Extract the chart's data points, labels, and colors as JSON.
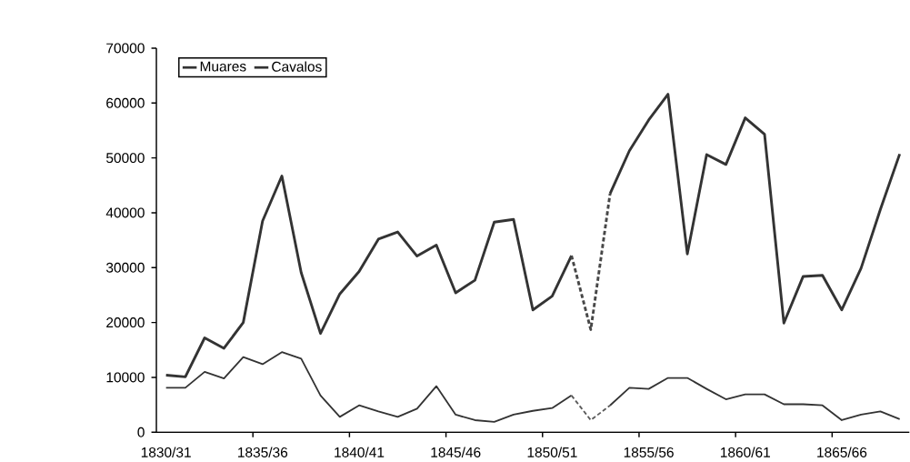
{
  "chart_data": {
    "type": "line",
    "categories": [
      "1830/31",
      null,
      null,
      null,
      null,
      "1835/36",
      null,
      null,
      null,
      null,
      "1840/41",
      null,
      null,
      null,
      null,
      "1845/46",
      null,
      null,
      null,
      null,
      "1850/51",
      null,
      null,
      null,
      null,
      "1855/56",
      null,
      null,
      null,
      null,
      "1860/61",
      null,
      null,
      null,
      null,
      "1865/66",
      null,
      null,
      null
    ],
    "series": [
      {
        "name": "Muares",
        "color": "#333333",
        "line_style": "solid",
        "values": [
          10400,
          10100,
          17200,
          15300,
          20000,
          38500,
          46700,
          29100,
          18000,
          25200,
          29300,
          35200,
          36500,
          32100,
          34100,
          25400,
          27700,
          38300,
          38800,
          22300,
          24800,
          32200,
          null,
          43500,
          51300,
          56900,
          61600,
          32500,
          50600,
          48800,
          57300,
          54300,
          19900,
          28400,
          28600,
          22300,
          29900,
          40600,
          50700
        ]
      },
      {
        "name": "Cavalos",
        "color": "#333333",
        "line_style": "solid",
        "values": [
          8100,
          8100,
          11000,
          9800,
          13700,
          12400,
          14600,
          13400,
          6700,
          2800,
          4900,
          3800,
          2800,
          4300,
          8400,
          3200,
          2200,
          1900,
          3200,
          3900,
          4400,
          6700,
          null,
          4900,
          8100,
          7900,
          9900,
          9900,
          7900,
          6000,
          6900,
          6900,
          5100,
          5100,
          4900,
          2200,
          3200,
          3800,
          2400
        ]
      },
      {
        "color": "#474747",
        "line_style": "dashed",
        "values": [
          null,
          null,
          null,
          null,
          null,
          null,
          null,
          null,
          null,
          null,
          null,
          null,
          null,
          null,
          null,
          null,
          null,
          null,
          null,
          null,
          null,
          32200,
          18700,
          43500,
          null,
          null,
          null,
          null,
          null,
          null,
          null,
          null,
          null,
          null,
          null,
          null,
          null,
          null,
          null
        ]
      },
      {
        "color": "#5a5a5a",
        "line_style": "dashed",
        "values": [
          null,
          null,
          null,
          null,
          null,
          null,
          null,
          null,
          null,
          null,
          null,
          null,
          null,
          null,
          null,
          null,
          null,
          null,
          null,
          null,
          null,
          6700,
          2200,
          4900,
          null,
          null,
          null,
          null,
          null,
          null,
          null,
          null,
          null,
          null,
          null,
          null,
          null,
          null,
          null
        ]
      }
    ],
    "ylim": [
      0,
      70000
    ],
    "yticks": [
      0,
      10000,
      20000,
      30000,
      40000,
      50000,
      60000,
      70000
    ],
    "legend": "top left"
  }
}
